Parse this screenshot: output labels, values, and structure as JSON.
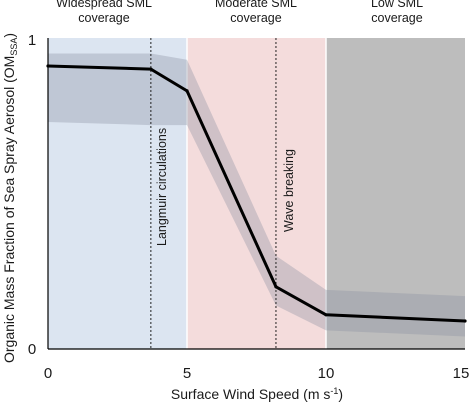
{
  "chart_data": {
    "type": "line",
    "xlabel_main": "Surface Wind Speed (m s",
    "xlabel_sup": "-1",
    "xlabel_end": ")",
    "ylabel_main": "Organic Mass Fraction of Sea Spray Aerosol (OM",
    "ylabel_sub": "SSA",
    "ylabel_end": ")",
    "xlim": [
      0,
      15
    ],
    "ylim": [
      0,
      1
    ],
    "xticks": [
      "0",
      "5",
      "10",
      "15"
    ],
    "yticks": [
      "0",
      "1"
    ],
    "grid": false,
    "regions": [
      {
        "x0": 0,
        "x1": 5,
        "color": "#dce5f1",
        "label_line1": "Widespread SML",
        "label_line2": "coverage"
      },
      {
        "x0": 5,
        "x1": 10,
        "color": "#f4dcdc",
        "label_line1": "Moderate SML",
        "label_line2": "coverage"
      },
      {
        "x0": 10,
        "x1": 15,
        "color": "#bdbdbd",
        "label_line1": "Low SML",
        "label_line2": "coverage"
      }
    ],
    "annotations": [
      {
        "x": 3.7,
        "label": "Langmuir circulations"
      },
      {
        "x": 8.2,
        "label": "Wave breaking"
      }
    ],
    "series": [
      {
        "x": [
          0,
          3.7,
          5,
          8.2,
          10,
          15
        ],
        "y": [
          0.91,
          0.9,
          0.83,
          0.2,
          0.11,
          0.09
        ],
        "upper": [
          0.95,
          0.95,
          0.93,
          0.3,
          0.19,
          0.17
        ],
        "lower": [
          0.73,
          0.72,
          0.72,
          0.14,
          0.06,
          0.04
        ]
      }
    ],
    "line_color": "#000000",
    "band_color": "#8a8fa0"
  }
}
